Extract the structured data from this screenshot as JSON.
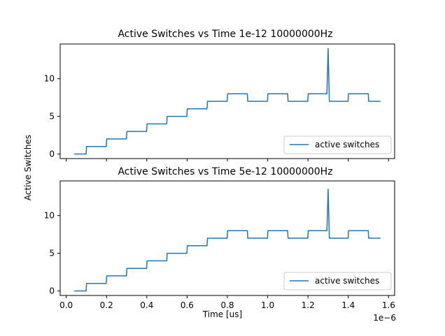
{
  "figure": {
    "ylabel": "Active Switches",
    "xlabel": "Time [us]",
    "x_offset_label": "1e−6"
  },
  "chart_data": [
    {
      "type": "line",
      "title": "Active Switches vs Time 1e-12 10000000Hz",
      "xlim": [
        -3e-08,
        1.63e-06
      ],
      "ylim": [
        -0.6,
        14.6
      ],
      "yticks": [
        0,
        5,
        10
      ],
      "ytick_labels": [
        "0",
        "5",
        "10"
      ],
      "xticks": [
        0,
        2e-07,
        4e-07,
        6e-07,
        8e-07,
        1e-06,
        1.2e-06,
        1.4e-06,
        1.6e-06
      ],
      "grid": false,
      "legend_position": "lower-right",
      "series": [
        {
          "name": "active switches",
          "color": "#1f77b4",
          "x": [
            4e-08,
            9.9e-08,
            1.01e-07,
            1.99e-07,
            2.01e-07,
            2.99e-07,
            3.01e-07,
            3.99e-07,
            4.01e-07,
            4.99e-07,
            5.01e-07,
            5.99e-07,
            6.01e-07,
            6.99e-07,
            7.01e-07,
            7.99e-07,
            8.01e-07,
            8.99e-07,
            9.01e-07,
            9.99e-07,
            1.001e-06,
            1.099e-06,
            1.101e-06,
            1.199e-06,
            1.201e-06,
            1.294e-06,
            1.3e-06,
            1.306e-06,
            1.399e-06,
            1.401e-06,
            1.499e-06,
            1.501e-06,
            1.56e-06
          ],
          "y": [
            0,
            0,
            1,
            1,
            2,
            2,
            3,
            3,
            4,
            4,
            5,
            5,
            6,
            6,
            7,
            7,
            8,
            8,
            7,
            7,
            8,
            8,
            7,
            7,
            8,
            8,
            14,
            7,
            7,
            8,
            8,
            7,
            7
          ]
        }
      ]
    },
    {
      "type": "line",
      "title": "Active Switches vs Time 5e-12 10000000Hz",
      "xlim": [
        -3e-08,
        1.63e-06
      ],
      "ylim": [
        -0.6,
        14.6
      ],
      "yticks": [
        0,
        5,
        10
      ],
      "ytick_labels": [
        "0",
        "5",
        "10"
      ],
      "xticks": [
        0,
        2e-07,
        4e-07,
        6e-07,
        8e-07,
        1e-06,
        1.2e-06,
        1.4e-06,
        1.6e-06
      ],
      "xtick_labels": [
        "0.0",
        "0.2",
        "0.4",
        "0.6",
        "0.8",
        "1.0",
        "1.2",
        "1.4",
        "1.6"
      ],
      "grid": false,
      "legend_position": "lower-right",
      "series": [
        {
          "name": "active switches",
          "color": "#1f77b4",
          "x": [
            4e-08,
            9.9e-08,
            1.01e-07,
            1.99e-07,
            2.01e-07,
            2.99e-07,
            3.01e-07,
            3.99e-07,
            4.01e-07,
            4.99e-07,
            5.01e-07,
            5.99e-07,
            6.01e-07,
            6.99e-07,
            7.01e-07,
            7.99e-07,
            8.01e-07,
            8.99e-07,
            9.01e-07,
            9.99e-07,
            1.001e-06,
            1.099e-06,
            1.101e-06,
            1.199e-06,
            1.201e-06,
            1.294e-06,
            1.3e-06,
            1.306e-06,
            1.399e-06,
            1.401e-06,
            1.499e-06,
            1.501e-06,
            1.56e-06
          ],
          "y": [
            0,
            0,
            1,
            1,
            2,
            2,
            3,
            3,
            4,
            4,
            5,
            5,
            6,
            6,
            7,
            7,
            8,
            8,
            7,
            7,
            8,
            8,
            7,
            7,
            8,
            8,
            13.5,
            7,
            7,
            8,
            8,
            7,
            7
          ]
        }
      ]
    }
  ]
}
